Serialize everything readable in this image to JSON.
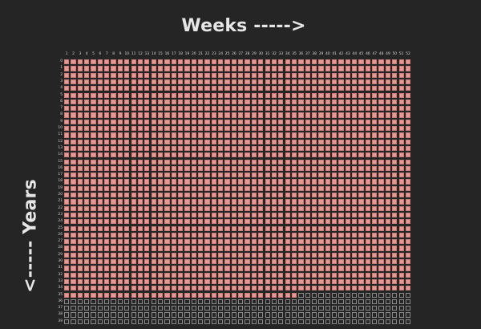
{
  "titles": {
    "weeks_label": "Weeks ----->",
    "years_label": "<----- Years"
  },
  "grid": {
    "week_numbers": [
      1,
      2,
      3,
      4,
      5,
      6,
      7,
      8,
      9,
      10,
      11,
      12,
      13,
      14,
      15,
      16,
      17,
      18,
      19,
      20,
      21,
      22,
      23,
      24,
      25,
      26,
      27,
      28,
      29,
      30,
      31,
      32,
      33,
      34,
      35,
      36,
      37,
      38,
      39,
      40,
      41,
      42,
      43,
      44,
      45,
      46,
      47,
      48,
      49,
      50,
      51,
      52
    ],
    "year_numbers": [
      0,
      1,
      2,
      3,
      4,
      5,
      6,
      7,
      8,
      9,
      10,
      11,
      12,
      13,
      14,
      15,
      16,
      17,
      18,
      19,
      20,
      21,
      22,
      23,
      24,
      25,
      26,
      27,
      28,
      29,
      30,
      31,
      32,
      33,
      34,
      35,
      36,
      37,
      38,
      39
    ],
    "weeks_lived": 1855,
    "colors": {
      "lived": "#e89793",
      "future": "#262626",
      "background": "#252525"
    }
  }
}
